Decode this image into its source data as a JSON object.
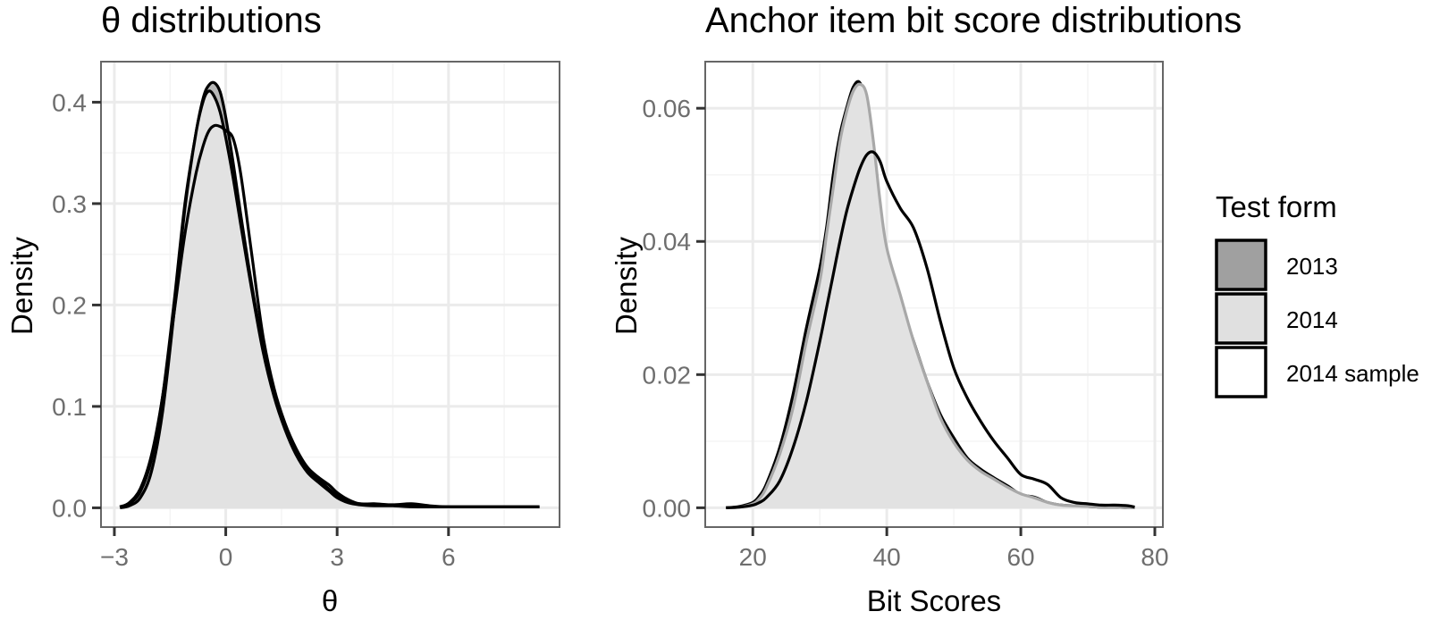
{
  "figure": {
    "legend": {
      "title": "Test form",
      "items": [
        {
          "label": "2013",
          "fill": "#a0a0a0",
          "stroke": "#000000"
        },
        {
          "label": "2014",
          "fill": "#e0e0e0",
          "stroke": "#000000"
        },
        {
          "label": "2014 sample",
          "fill": "#ffffff",
          "stroke": "#000000"
        }
      ]
    },
    "colors": {
      "panel_border": "#666666",
      "grid_major": "#ebebeb",
      "grid_minor": "#f4f4f4",
      "fill_2013": "#a0a0a0",
      "fill_2013_overlap": "#b9b9b9",
      "fill_2014": "#e2e2e2",
      "line_2014_right": "#a8a8a8",
      "line_dark": "#000000",
      "tick_text": "#6e6e6e"
    }
  },
  "chart_data": [
    {
      "type": "area",
      "title": "θ distributions",
      "xlabel": "θ",
      "ylabel": "Density",
      "xlim": [
        -3.36,
        8.99
      ],
      "ylim": [
        -0.019,
        0.44
      ],
      "xticks": [
        -3,
        0,
        3,
        6
      ],
      "xtick_labels": [
        "−3",
        "0",
        "3",
        "6"
      ],
      "yticks": [
        0.0,
        0.1,
        0.2,
        0.3,
        0.4
      ],
      "ytick_labels": [
        "0.0",
        "0.1",
        "0.2",
        "0.3",
        "0.4"
      ],
      "grid": true,
      "legend_position": "right (shared)",
      "series": [
        {
          "name": "2013",
          "x": [
            -2.85,
            -2.6,
            -2.3,
            -2.0,
            -1.7,
            -1.4,
            -1.1,
            -0.8,
            -0.6,
            -0.45,
            -0.3,
            -0.15,
            0.0,
            0.2,
            0.4,
            0.7,
            1.0,
            1.3,
            1.6,
            1.9,
            2.2,
            2.5,
            2.8,
            3.0,
            3.3,
            3.6,
            4.0,
            4.5,
            5.0,
            5.5,
            6.0,
            6.5,
            7.0,
            7.5,
            8.0,
            8.45
          ],
          "y": [
            0.001,
            0.004,
            0.016,
            0.048,
            0.11,
            0.2,
            0.3,
            0.37,
            0.405,
            0.417,
            0.419,
            0.41,
            0.385,
            0.34,
            0.29,
            0.22,
            0.16,
            0.115,
            0.08,
            0.055,
            0.038,
            0.028,
            0.018,
            0.012,
            0.006,
            0.004,
            0.003,
            0.002,
            0.002,
            0.001,
            0.001,
            0.001,
            0.001,
            0.001,
            0.001,
            0.001
          ]
        },
        {
          "name": "2014",
          "x": [
            -2.85,
            -2.6,
            -2.3,
            -2.0,
            -1.7,
            -1.4,
            -1.1,
            -0.8,
            -0.6,
            -0.45,
            -0.3,
            -0.15,
            0.0,
            0.2,
            0.4,
            0.7,
            1.0,
            1.3,
            1.6,
            1.9,
            2.2,
            2.5,
            2.8,
            3.0,
            3.3,
            3.6,
            4.0,
            4.5,
            5.0,
            5.5,
            6.0,
            6.5,
            7.0,
            7.5,
            8.0,
            8.45
          ],
          "y": [
            0.0,
            0.002,
            0.01,
            0.036,
            0.095,
            0.19,
            0.295,
            0.37,
            0.402,
            0.411,
            0.405,
            0.39,
            0.365,
            0.325,
            0.28,
            0.215,
            0.155,
            0.11,
            0.077,
            0.052,
            0.035,
            0.025,
            0.016,
            0.01,
            0.005,
            0.003,
            0.002,
            0.002,
            0.001,
            0.001,
            0.001,
            0.001,
            0.001,
            0.001,
            0.001,
            0.001
          ]
        },
        {
          "name": "2014 sample",
          "x": [
            -2.85,
            -2.6,
            -2.3,
            -2.0,
            -1.7,
            -1.4,
            -1.1,
            -0.8,
            -0.6,
            -0.45,
            -0.3,
            -0.15,
            0.0,
            0.2,
            0.4,
            0.7,
            1.0,
            1.3,
            1.6,
            1.9,
            2.2,
            2.5,
            2.8,
            3.0,
            3.3,
            3.6,
            4.0,
            4.5,
            5.0,
            5.5,
            6.0,
            6.5,
            7.0,
            7.5,
            8.0,
            8.45
          ],
          "y": [
            0.001,
            0.005,
            0.019,
            0.052,
            0.11,
            0.19,
            0.27,
            0.33,
            0.358,
            0.372,
            0.377,
            0.376,
            0.372,
            0.364,
            0.33,
            0.25,
            0.17,
            0.118,
            0.083,
            0.058,
            0.04,
            0.03,
            0.022,
            0.015,
            0.008,
            0.004,
            0.004,
            0.003,
            0.004,
            0.002,
            0.001,
            0.001,
            0.001,
            0.001,
            0.001,
            0.001
          ]
        }
      ]
    },
    {
      "type": "area",
      "title": "Anchor item bit score distributions",
      "xlabel": "Bit Scores",
      "ylabel": "Density",
      "xlim": [
        12.9,
        81.2
      ],
      "ylim": [
        -0.0029,
        0.067
      ],
      "xticks": [
        20,
        40,
        60,
        80
      ],
      "xtick_labels": [
        "20",
        "40",
        "60",
        "80"
      ],
      "yticks": [
        0.0,
        0.02,
        0.04,
        0.06
      ],
      "ytick_labels": [
        "0.00",
        "0.02",
        "0.04",
        "0.06"
      ],
      "grid": true,
      "legend_position": "right",
      "series": [
        {
          "name": "2013",
          "x": [
            16,
            18,
            20,
            21,
            22,
            24,
            26,
            28,
            30,
            31,
            32,
            33,
            34,
            35,
            36,
            37,
            38,
            39,
            40,
            42,
            44,
            46,
            48,
            50,
            52,
            54,
            56,
            58,
            60,
            62,
            64,
            66,
            68,
            70,
            72,
            74,
            76,
            77
          ],
          "y": [
            0.0,
            0.0002,
            0.0008,
            0.0018,
            0.0035,
            0.009,
            0.017,
            0.027,
            0.036,
            0.042,
            0.05,
            0.056,
            0.06,
            0.0632,
            0.0638,
            0.06,
            0.05,
            0.042,
            0.037,
            0.031,
            0.025,
            0.019,
            0.014,
            0.0105,
            0.0075,
            0.0058,
            0.0045,
            0.0033,
            0.002,
            0.0016,
            0.0008,
            0.0004,
            0.0003,
            0.0002,
            0.0001,
            0.0001,
            0.0,
            0.0
          ]
        },
        {
          "name": "2014",
          "x": [
            16,
            18,
            20,
            21,
            22,
            24,
            26,
            28,
            30,
            31,
            32,
            33,
            34,
            35,
            36,
            37,
            38,
            39,
            40,
            42,
            44,
            46,
            48,
            50,
            52,
            54,
            56,
            58,
            60,
            62,
            64,
            66,
            68,
            70,
            72,
            74,
            76,
            77
          ],
          "y": [
            0.0,
            0.0001,
            0.0006,
            0.0014,
            0.003,
            0.008,
            0.015,
            0.025,
            0.034,
            0.041,
            0.048,
            0.055,
            0.0595,
            0.0626,
            0.0636,
            0.062,
            0.055,
            0.046,
            0.039,
            0.032,
            0.025,
            0.019,
            0.0135,
            0.0098,
            0.0072,
            0.0055,
            0.0043,
            0.0031,
            0.0021,
            0.0015,
            0.0008,
            0.0004,
            0.0003,
            0.0002,
            0.0001,
            0.0001,
            0.0,
            0.0
          ]
        },
        {
          "name": "2014 sample",
          "x": [
            16,
            18,
            20,
            21,
            22,
            24,
            26,
            28,
            30,
            31,
            32,
            33,
            34,
            35,
            36,
            37,
            38,
            39,
            40,
            42,
            44,
            46,
            48,
            50,
            52,
            54,
            56,
            58,
            60,
            62,
            64,
            66,
            68,
            70,
            72,
            74,
            76,
            77
          ],
          "y": [
            0.0,
            0.0001,
            0.0004,
            0.0008,
            0.0015,
            0.004,
            0.009,
            0.016,
            0.025,
            0.03,
            0.035,
            0.04,
            0.0445,
            0.048,
            0.051,
            0.053,
            0.0534,
            0.052,
            0.049,
            0.045,
            0.042,
            0.036,
            0.028,
            0.021,
            0.0165,
            0.013,
            0.01,
            0.0075,
            0.005,
            0.0043,
            0.0035,
            0.0015,
            0.0008,
            0.0006,
            0.0004,
            0.0004,
            0.0003,
            0.0001
          ]
        }
      ]
    }
  ]
}
